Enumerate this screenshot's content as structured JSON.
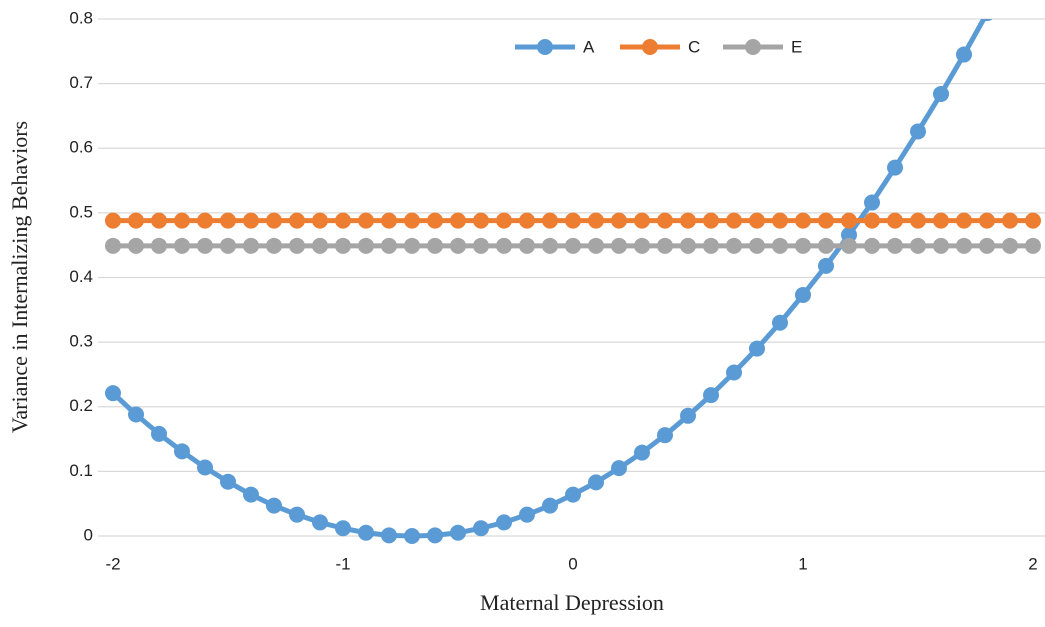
{
  "chart_data": {
    "type": "line",
    "x_label": "Maternal Depression",
    "y_label": "Variance in Internalizing Behaviors",
    "x": [
      -2,
      -1.9,
      -1.8,
      -1.7,
      -1.6,
      -1.5,
      -1.4,
      -1.3,
      -1.2,
      -1.1,
      -1,
      -0.9,
      -0.8,
      -0.7,
      -0.6,
      -0.5,
      -0.4,
      -0.3,
      -0.2,
      -0.1,
      0,
      0.1,
      0.2,
      0.3,
      0.4,
      0.5,
      0.6,
      0.7,
      0.8,
      0.9,
      1,
      1.1,
      1.2,
      1.3,
      1.4,
      1.5,
      1.6,
      1.7,
      1.8,
      1.9,
      2
    ],
    "series": [
      {
        "name": "A",
        "color": "#5b9bd5",
        "values": [
          0.221,
          0.188,
          0.158,
          0.131,
          0.106,
          0.084,
          0.064,
          0.047,
          0.033,
          0.021,
          0.012,
          0.005,
          0.001,
          0.0,
          0.001,
          0.005,
          0.012,
          0.021,
          0.033,
          0.047,
          0.064,
          0.083,
          0.105,
          0.129,
          0.156,
          0.186,
          0.218,
          0.253,
          0.29,
          0.33,
          0.373,
          0.418,
          0.466,
          0.516,
          0.57,
          0.626,
          0.684,
          0.745,
          0.809,
          null,
          null
        ]
      },
      {
        "name": "C",
        "color": "#ed7d31",
        "values": [
          0.488,
          0.488,
          0.488,
          0.488,
          0.488,
          0.488,
          0.488,
          0.488,
          0.488,
          0.488,
          0.488,
          0.488,
          0.488,
          0.488,
          0.488,
          0.488,
          0.488,
          0.488,
          0.488,
          0.488,
          0.488,
          0.488,
          0.488,
          0.488,
          0.488,
          0.488,
          0.488,
          0.488,
          0.488,
          0.488,
          0.488,
          0.488,
          0.488,
          0.488,
          0.488,
          0.488,
          0.488,
          0.488,
          0.488,
          0.488,
          0.488
        ]
      },
      {
        "name": "E",
        "color": "#a5a5a5",
        "values": [
          0.449,
          0.449,
          0.449,
          0.449,
          0.449,
          0.449,
          0.449,
          0.449,
          0.449,
          0.449,
          0.449,
          0.449,
          0.449,
          0.449,
          0.449,
          0.449,
          0.449,
          0.449,
          0.449,
          0.449,
          0.449,
          0.449,
          0.449,
          0.449,
          0.449,
          0.449,
          0.449,
          0.449,
          0.449,
          0.449,
          0.449,
          0.449,
          0.449,
          0.449,
          0.449,
          0.449,
          0.449,
          0.449,
          0.449,
          0.449,
          0.449
        ]
      }
    ],
    "xlim": [
      -2,
      2
    ],
    "xticks": [
      -2,
      -1,
      0,
      1,
      2
    ],
    "ylim": [
      0,
      0.8
    ],
    "yticks": [
      0,
      0.1,
      0.2,
      0.3,
      0.4,
      0.5,
      0.6,
      0.7,
      0.8
    ],
    "grid": true,
    "legend": "top"
  }
}
